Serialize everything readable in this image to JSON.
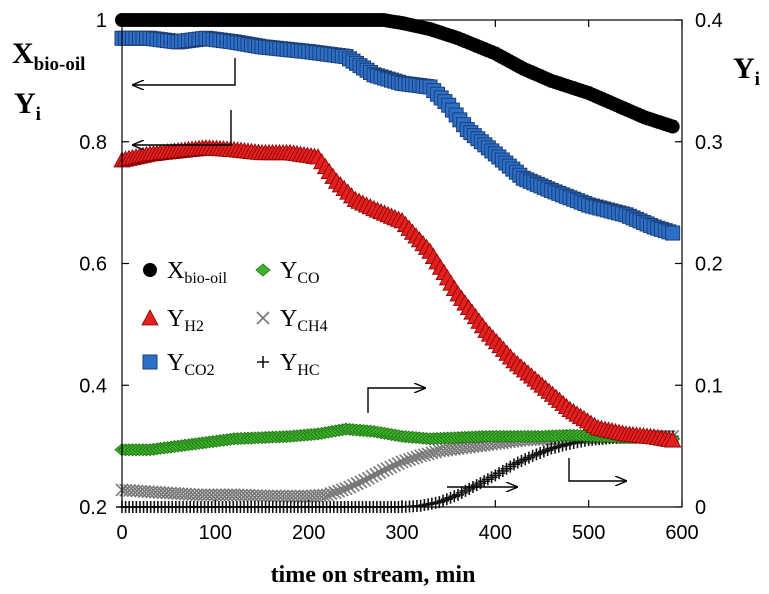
{
  "chart_data": {
    "type": "scatter",
    "xlabel": "time on stream, min",
    "ylabel_left_main": "X",
    "ylabel_left_main_sub": "bio-oil",
    "ylabel_left_second": "Y",
    "ylabel_left_second_sub": "i",
    "ylabel_right": "Y",
    "ylabel_right_sub": "i",
    "xlim": [
      0,
      600
    ],
    "ylim_left": [
      0.2,
      1.0
    ],
    "ylim_right": [
      0,
      0.4
    ],
    "x_ticks": [
      0,
      100,
      200,
      300,
      400,
      500,
      600
    ],
    "y_left_ticks": [
      0.2,
      0.4,
      0.6,
      0.8,
      1.0
    ],
    "y_left_tick_labels": [
      "0.2",
      "0.4",
      "0.6",
      "0.8",
      "1"
    ],
    "y_right_ticks": [
      0,
      0.1,
      0.2,
      0.3,
      0.4
    ],
    "y_right_tick_labels": [
      "0",
      "0.1",
      "0.2",
      "0.3",
      "0.4"
    ],
    "grid": false,
    "legend_position": "center-left",
    "series": [
      {
        "name": "X",
        "name_sub": "bio-oil",
        "axis": "left",
        "marker": "circle",
        "color": "#000000",
        "x": [
          0,
          50,
          100,
          150,
          200,
          250,
          280,
          300,
          330,
          360,
          400,
          430,
          460,
          500,
          530,
          560,
          590
        ],
        "values": [
          1.0,
          1.0,
          1.0,
          1.0,
          1.0,
          1.0,
          1.0,
          0.995,
          0.985,
          0.97,
          0.945,
          0.92,
          0.9,
          0.88,
          0.86,
          0.84,
          0.825
        ]
      },
      {
        "name": "Y",
        "name_sub": "CO2",
        "axis": "right",
        "marker": "square",
        "color": "#2b6fc7",
        "x": [
          0,
          30,
          60,
          90,
          120,
          150,
          200,
          240,
          270,
          300,
          330,
          350,
          370,
          400,
          430,
          460,
          500,
          540,
          570,
          590
        ],
        "values": [
          0.385,
          0.385,
          0.382,
          0.385,
          0.382,
          0.378,
          0.374,
          0.37,
          0.355,
          0.348,
          0.345,
          0.33,
          0.31,
          0.29,
          0.27,
          0.26,
          0.248,
          0.24,
          0.23,
          0.225
        ]
      },
      {
        "name": "Y",
        "name_sub": "H2",
        "axis": "left",
        "marker": "triangle",
        "color": "#e32020",
        "x": [
          0,
          30,
          60,
          90,
          120,
          150,
          180,
          210,
          230,
          250,
          270,
          300,
          330,
          360,
          390,
          420,
          450,
          480,
          510,
          540,
          570,
          590
        ],
        "values": [
          0.77,
          0.78,
          0.785,
          0.79,
          0.787,
          0.782,
          0.782,
          0.775,
          0.735,
          0.705,
          0.69,
          0.67,
          0.62,
          0.55,
          0.49,
          0.44,
          0.4,
          0.36,
          0.33,
          0.32,
          0.315,
          0.31
        ]
      },
      {
        "name": "Y",
        "name_sub": "CO",
        "axis": "right",
        "marker": "diamond",
        "color": "#3cb22a",
        "x": [
          0,
          30,
          60,
          90,
          120,
          150,
          180,
          210,
          240,
          270,
          300,
          330,
          360,
          390,
          420,
          450,
          480,
          510,
          540,
          570,
          590
        ],
        "values": [
          0.047,
          0.047,
          0.05,
          0.053,
          0.056,
          0.057,
          0.058,
          0.06,
          0.064,
          0.062,
          0.058,
          0.056,
          0.057,
          0.058,
          0.058,
          0.058,
          0.059,
          0.058,
          0.057,
          0.057,
          0.056
        ]
      },
      {
        "name": "Y",
        "name_sub": "CH4",
        "axis": "right",
        "marker": "x",
        "color": "#777777",
        "x": [
          0,
          40,
          80,
          120,
          160,
          200,
          220,
          240,
          260,
          280,
          300,
          320,
          340,
          360,
          380,
          400,
          430,
          460,
          500,
          540,
          590
        ],
        "values": [
          0.014,
          0.012,
          0.01,
          0.01,
          0.009,
          0.009,
          0.01,
          0.015,
          0.022,
          0.03,
          0.037,
          0.042,
          0.046,
          0.048,
          0.05,
          0.052,
          0.055,
          0.056,
          0.057,
          0.057,
          0.058
        ]
      },
      {
        "name": "Y",
        "name_sub": "HC",
        "axis": "right",
        "marker": "plus",
        "color": "#111111",
        "x": [
          0,
          50,
          100,
          150,
          200,
          250,
          300,
          320,
          340,
          360,
          380,
          400,
          420,
          440,
          460,
          480,
          500,
          530,
          560,
          590
        ],
        "values": [
          0.0,
          0.0,
          0.0,
          0.0,
          0.0,
          0.0,
          0.0,
          0.001,
          0.004,
          0.01,
          0.018,
          0.026,
          0.035,
          0.042,
          0.048,
          0.052,
          0.055,
          0.057,
          0.058,
          0.058
        ]
      }
    ]
  }
}
